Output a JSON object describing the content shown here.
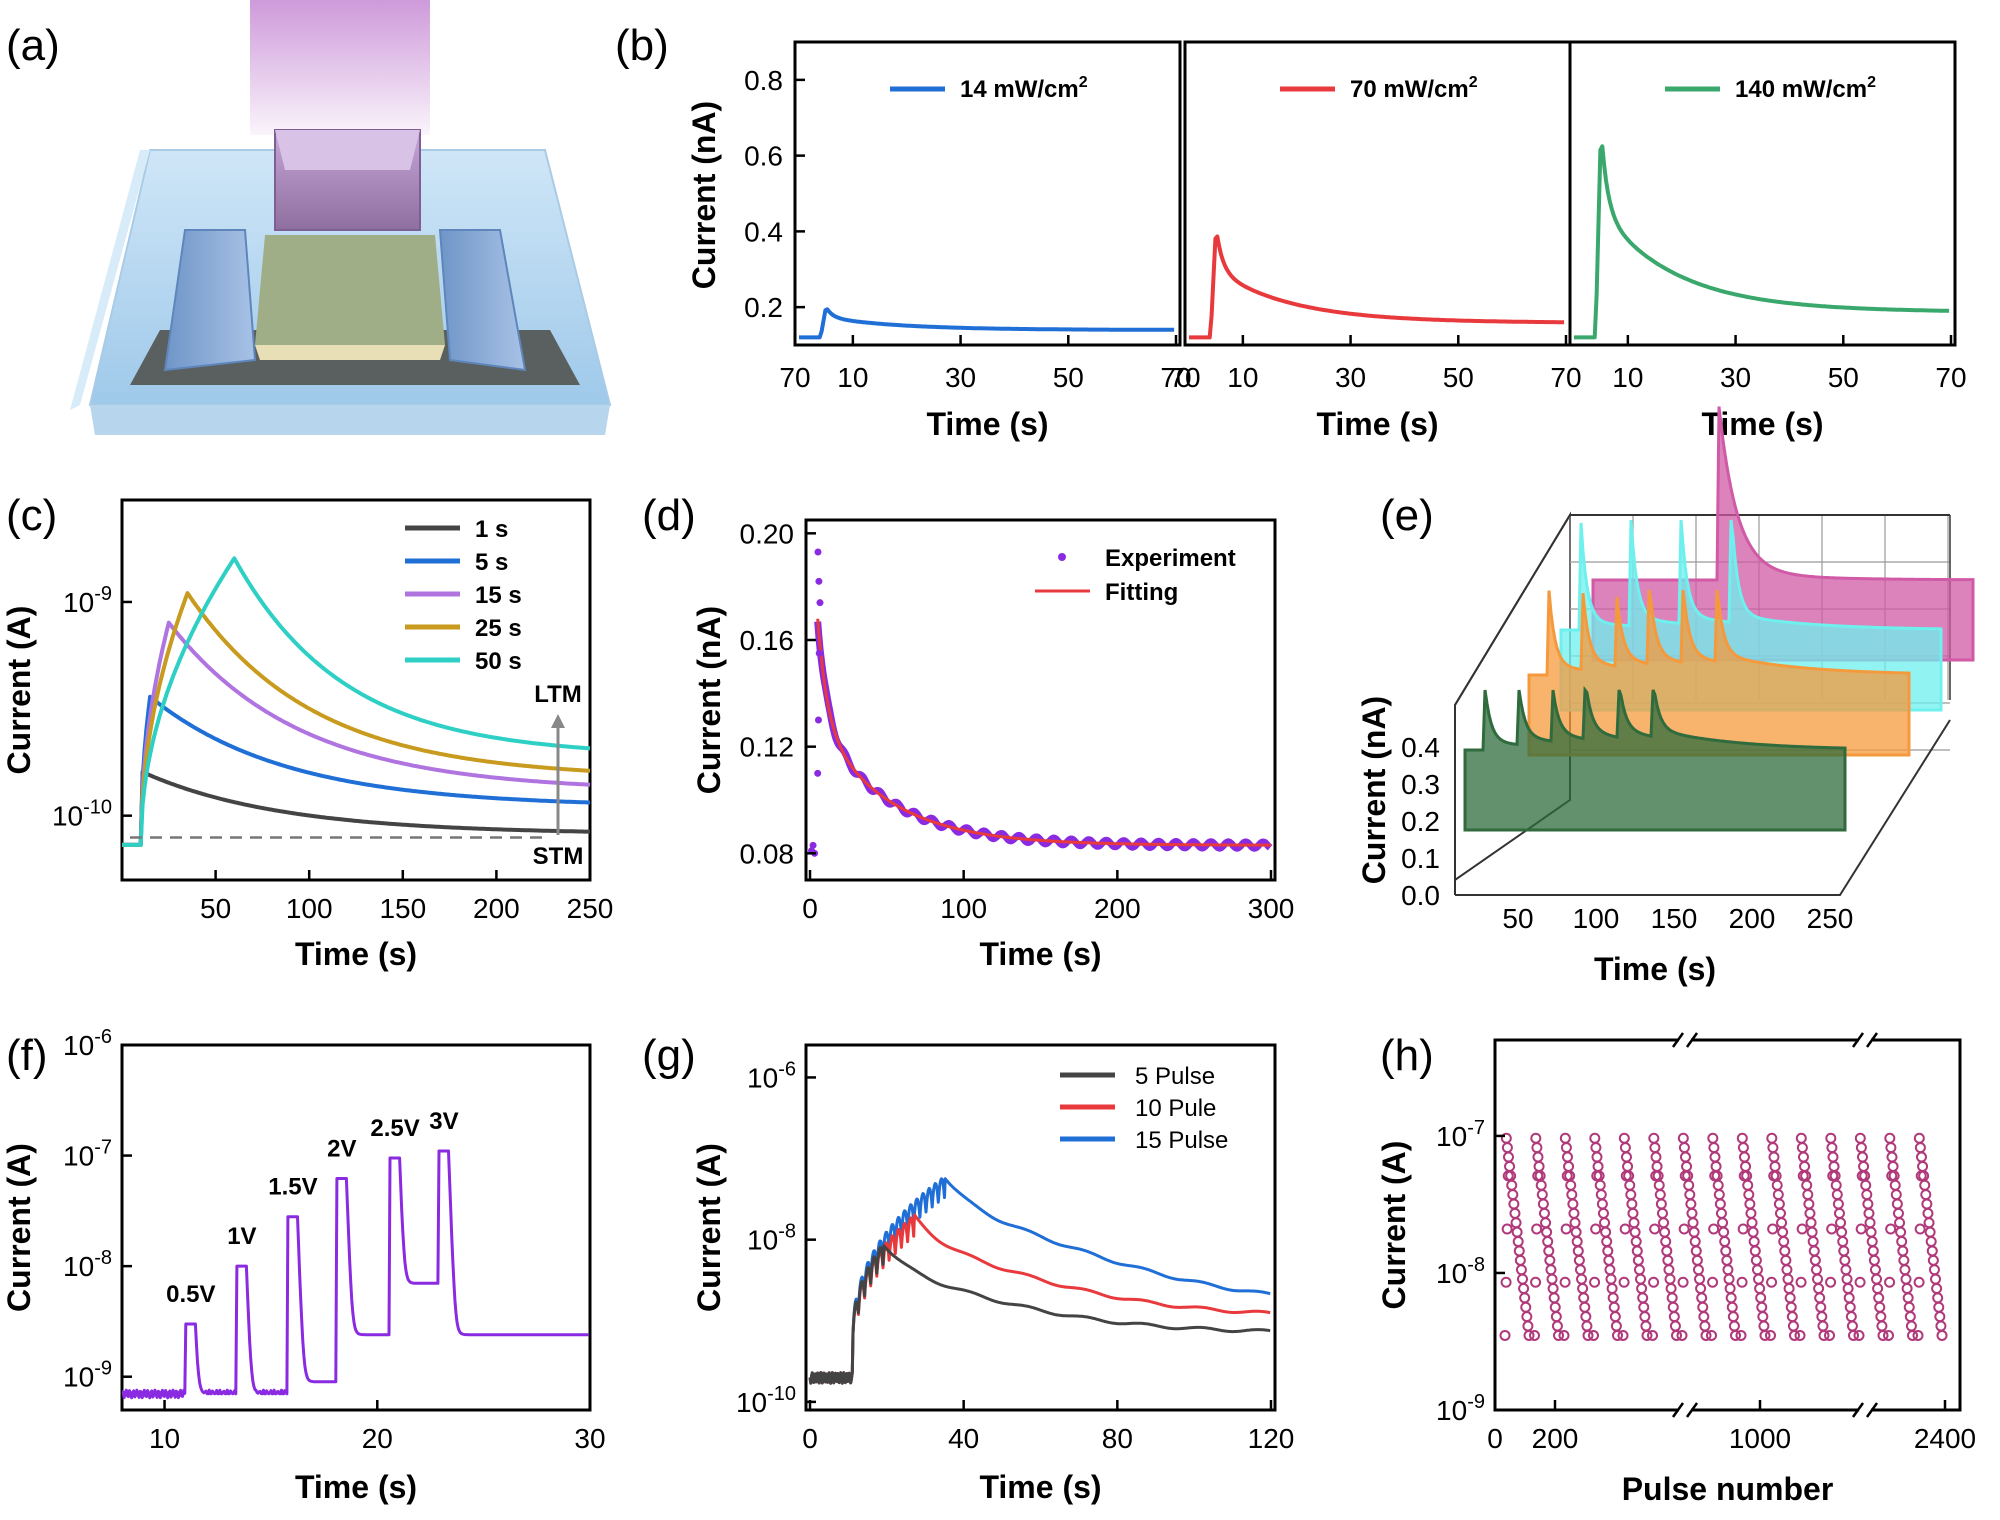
{
  "panel_labels": [
    "(a)",
    "(b)",
    "(c)",
    "(d)",
    "(e)",
    "(f)",
    "(g)",
    "(h)"
  ],
  "colors": {
    "blue": "#1f6fd6",
    "red": "#e8393c",
    "green": "#3aa86c",
    "black": "#444444",
    "violet": "#b074e0",
    "gold": "#c89a1e",
    "cyan": "#2ecfc4",
    "purple": "#8a2be2",
    "magenta": "#b0397a",
    "orange": "#f59a3c",
    "darkgreen": "#2f6b3c",
    "pink": "#d05aa6",
    "lightcyan": "#6ef0ee"
  },
  "chart_data": [
    {
      "id": "b",
      "type": "line",
      "title": "",
      "xlabel": "Time (s)",
      "ylabel": "Current (nA)",
      "ylim": [
        0.1,
        0.9
      ],
      "yticks": [
        "0.2",
        "0.4",
        "0.6",
        "0.8"
      ],
      "subpanels": [
        {
          "xlim": [
            0,
            70
          ],
          "xticks": [
            "10",
            "30",
            "50",
            "70"
          ],
          "legend": "14 mW/cm",
          "legend_sup": "2",
          "color": "blue",
          "base": 0.12,
          "peak": 0.2,
          "end": 0.14,
          "t_on": 4,
          "t_peak": 5
        },
        {
          "xlim": [
            0,
            70
          ],
          "xticks": [
            "70",
            "10",
            "30",
            "50",
            "70"
          ],
          "legend": "70 mW/cm",
          "legend_sup": "2",
          "color": "red",
          "base": 0.12,
          "peak": 0.41,
          "end": 0.16,
          "t_on": 4,
          "t_peak": 5
        },
        {
          "xlim": [
            0,
            70
          ],
          "xticks": [
            "70",
            "10",
            "30",
            "50",
            "70"
          ],
          "legend": "140 mW/cm",
          "legend_sup": "2",
          "color": "green",
          "base": 0.12,
          "peak": 0.67,
          "end": 0.19,
          "t_on": 4,
          "t_peak": 5
        }
      ]
    },
    {
      "id": "c",
      "type": "line",
      "xlabel": "Time (s)",
      "ylabel": "Current (A)",
      "yscale": "log",
      "ylim": [
        5e-11,
        3e-09
      ],
      "xlim": [
        0,
        250
      ],
      "xticks": [
        "50",
        "100",
        "150",
        "200",
        "250"
      ],
      "ytick_labels": [
        {
          "base": "10",
          "exp": "-9"
        },
        {
          "base": "10",
          "exp": "-10"
        }
      ],
      "series": [
        {
          "name": "1 s",
          "color": "black",
          "peak": 1.6e-10,
          "t_end": 11,
          "end": 8.2e-11
        },
        {
          "name": "5 s",
          "color": "blue",
          "peak": 3.6e-10,
          "t_end": 15,
          "end": 1.1e-10
        },
        {
          "name": "15 s",
          "color": "violet",
          "peak": 8e-10,
          "t_end": 25,
          "end": 1.3e-10
        },
        {
          "name": "25 s",
          "color": "gold",
          "peak": 1.1e-09,
          "t_end": 35,
          "end": 1.5e-10
        },
        {
          "name": "50 s",
          "color": "cyan",
          "peak": 1.6e-09,
          "t_end": 60,
          "end": 1.9e-10
        }
      ],
      "annotations": [
        "LTM",
        "STM"
      ]
    },
    {
      "id": "d",
      "type": "scatter",
      "xlabel": "Time (s)",
      "ylabel": "Current (nA)",
      "xlim": [
        0,
        300
      ],
      "ylim": [
        0.07,
        0.205
      ],
      "xticks": [
        "0",
        "100",
        "200",
        "300"
      ],
      "yticks": [
        "0.08",
        "0.12",
        "0.16",
        "0.20"
      ],
      "series": [
        {
          "name": "Experiment",
          "color": "purple"
        },
        {
          "name": "Fitting",
          "color": "red"
        }
      ],
      "peak": 0.168,
      "end": 0.083
    },
    {
      "id": "e",
      "type": "area",
      "xlabel": "Time (s)",
      "ylabel": "Current (nA)",
      "xticks": [
        "50",
        "100",
        "150",
        "200",
        "250"
      ],
      "yticks": [
        "0.0",
        "0.1",
        "0.2",
        "0.3",
        "0.4"
      ]
    },
    {
      "id": "f",
      "type": "line",
      "xlabel": "Time (s)",
      "ylabel": "Current (A)",
      "yscale": "log",
      "xlim": [
        8,
        30
      ],
      "xticks": [
        "10",
        "20",
        "30"
      ],
      "ytick_labels": [
        {
          "base": "10",
          "exp": "-6"
        },
        {
          "base": "10",
          "exp": "-7"
        },
        {
          "base": "10",
          "exp": "-8"
        },
        {
          "base": "10",
          "exp": "-9"
        }
      ],
      "pulses": [
        {
          "label": "0.5V",
          "t": 11,
          "peak": 3e-09
        },
        {
          "label": "1V",
          "t": 13.4,
          "peak": 1e-08
        },
        {
          "label": "1.5V",
          "t": 15.8,
          "peak": 2.8e-08
        },
        {
          "label": "2V",
          "t": 18.1,
          "peak": 6.2e-08
        },
        {
          "label": "2.5V",
          "t": 20.6,
          "peak": 9.5e-08
        },
        {
          "label": "3V",
          "t": 22.9,
          "peak": 1.1e-07
        }
      ],
      "color": "purple"
    },
    {
      "id": "g",
      "type": "line",
      "xlabel": "Time (s)",
      "ylabel": "Current (A)",
      "yscale": "log",
      "xlim": [
        0,
        120
      ],
      "xticks": [
        "0",
        "40",
        "80",
        "120"
      ],
      "ytick_labels": [
        {
          "base": "10",
          "exp": "-6"
        },
        {
          "base": "10",
          "exp": "-8"
        },
        {
          "base": "10",
          "exp": "-10"
        }
      ],
      "series": [
        {
          "name": "5  Pulse",
          "color": "black",
          "pulses": 5,
          "peak": 9e-09,
          "end": 7e-10
        },
        {
          "name": "10 Pule",
          "color": "red",
          "pulses": 10,
          "peak": 2e-08,
          "end": 1.1e-09
        },
        {
          "name": "15 Pulse",
          "color": "blue",
          "pulses": 15,
          "peak": 6e-08,
          "end": 1.5e-09
        }
      ]
    },
    {
      "id": "h",
      "type": "scatter",
      "xlabel": "Pulse number",
      "ylabel": "Current (A)",
      "yscale": "log",
      "xticks": [
        "0",
        "200",
        "1000",
        "2400"
      ],
      "ytick_labels": [
        {
          "base": "10",
          "exp": "-7"
        },
        {
          "base": "10",
          "exp": "-8"
        },
        {
          "base": "10",
          "exp": "-9"
        }
      ],
      "cycles": 15,
      "high": 1e-07,
      "low": 3.5e-09,
      "color": "magenta"
    }
  ]
}
